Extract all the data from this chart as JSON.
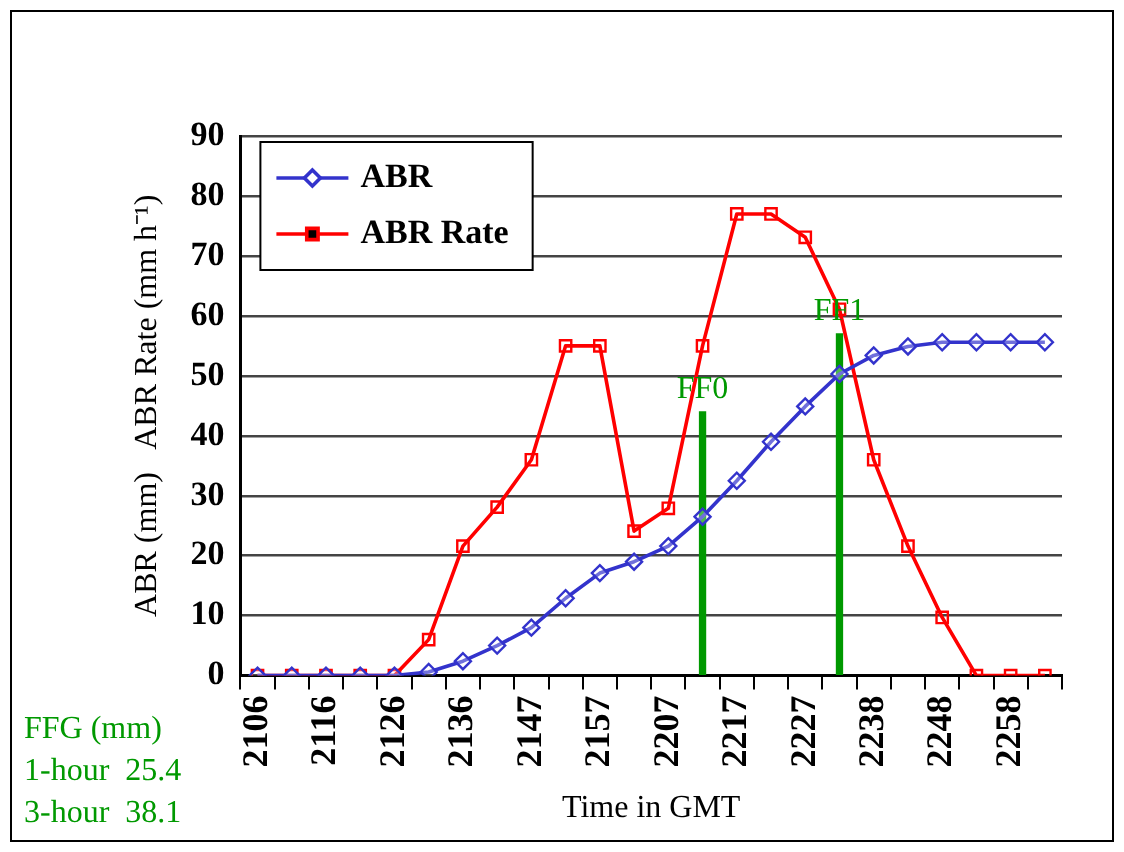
{
  "chart_data": {
    "type": "line",
    "categories": [
      "2106",
      null,
      "2116",
      null,
      "2126",
      null,
      "2136",
      null,
      "2147",
      null,
      "2157",
      null,
      "2207",
      null,
      "2217",
      null,
      "2227",
      null,
      "2238",
      null,
      "2248",
      null,
      "2258",
      null
    ],
    "series": [
      {
        "name": "ABR",
        "color": "#3333cc",
        "marker": "diamond",
        "values": [
          0,
          0,
          0,
          0,
          0,
          0.6,
          2.4,
          5,
          8,
          12.9,
          17.1,
          19,
          21.6,
          26.5,
          32.5,
          39,
          44.9,
          50.3,
          53.4,
          54.9,
          55.6,
          55.6,
          55.6,
          55.6
        ]
      },
      {
        "name": "ABR Rate",
        "color": "#ff0000",
        "marker": "square",
        "values": [
          0,
          0,
          0,
          0,
          0,
          6,
          21.6,
          28.1,
          36,
          55,
          55,
          24.1,
          27.9,
          55,
          77,
          77,
          73.1,
          61.1,
          36,
          21.6,
          9.7,
          0,
          0,
          0
        ]
      },
      {
        "name": "FF0",
        "type": "bar",
        "color": "#009900",
        "values": [
          null,
          null,
          null,
          null,
          null,
          null,
          null,
          null,
          null,
          null,
          null,
          null,
          null,
          44,
          null,
          null,
          null,
          null,
          null,
          null,
          null,
          null,
          null,
          null
        ]
      },
      {
        "name": "FF1",
        "type": "bar",
        "color": "#009900",
        "values": [
          null,
          null,
          null,
          null,
          null,
          null,
          null,
          null,
          null,
          null,
          null,
          null,
          null,
          null,
          null,
          null,
          null,
          57,
          null,
          null,
          null,
          null,
          null,
          null
        ]
      }
    ],
    "xlabel": "Time in GMT",
    "ylabel": "ABR (mm)   ABR Rate (mm h⁻¹)",
    "ylim": [
      0,
      90
    ],
    "yticks": [
      0,
      10,
      20,
      30,
      40,
      50,
      60,
      70,
      80,
      90
    ],
    "grid": "y",
    "legend": "top left",
    "line_style": "solid",
    "annotations": [
      "FFG (mm)",
      "1-hour  25.4",
      "3-hour  38.1"
    ]
  }
}
